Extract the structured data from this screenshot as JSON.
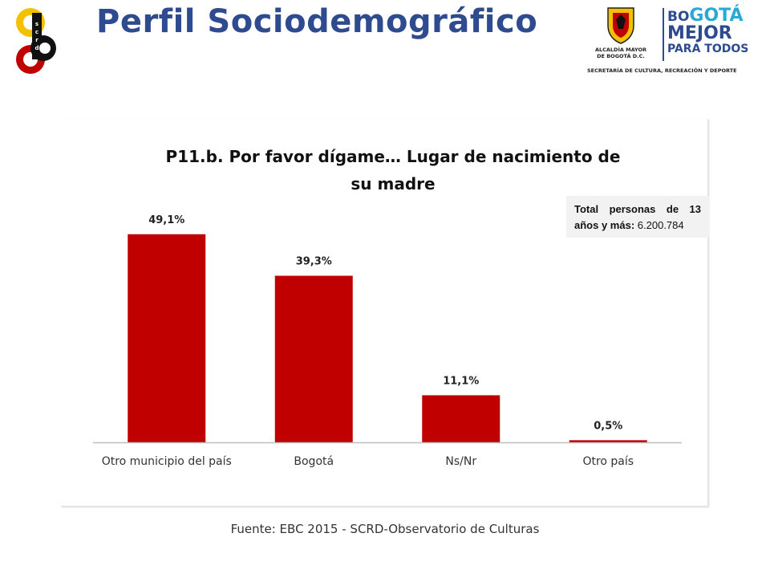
{
  "header": {
    "title": "Perfil Sociodemográfico",
    "brand_logo_letters": [
      "s",
      "c",
      "r",
      "d"
    ],
    "gov_logo": {
      "line1": "ALCALDÍA MAYOR",
      "line2": "DE BOGOTÁ D.C.",
      "slogan_bo": "BO",
      "slogan_gota": "GOTÁ",
      "slogan_mejor": "MEJOR",
      "slogan_para": "PARA TODOS",
      "subline": "SECRETARÍA DE CULTURA, RECREACIÓN Y DEPORTE"
    }
  },
  "total_box": {
    "label": "Total personas de 13 años y más:",
    "value": "6.200.784"
  },
  "footer": {
    "source": "Fuente: EBC 2015 - SCRD-Observatorio de Culturas"
  },
  "colors": {
    "bar": "#c00000",
    "title": "#2e4b8f",
    "accent": "#2aa9d6"
  },
  "chart_data": {
    "type": "bar",
    "title": "P11.b. Por favor dígame… Lugar de nacimiento de su madre",
    "title_lines": [
      "P11.b. Por favor dígame… Lugar de nacimiento de",
      "su madre"
    ],
    "categories": [
      "Otro municipio del país",
      "Bogotá",
      "Ns/Nr",
      "Otro país"
    ],
    "values": [
      49.1,
      39.3,
      11.1,
      0.5
    ],
    "data_labels": [
      "49,1%",
      "39,3%",
      "11,1%",
      "0,5%"
    ],
    "xlabel": "",
    "ylabel": "",
    "ylim": [
      0,
      50
    ],
    "grid": false,
    "legend": "none"
  }
}
